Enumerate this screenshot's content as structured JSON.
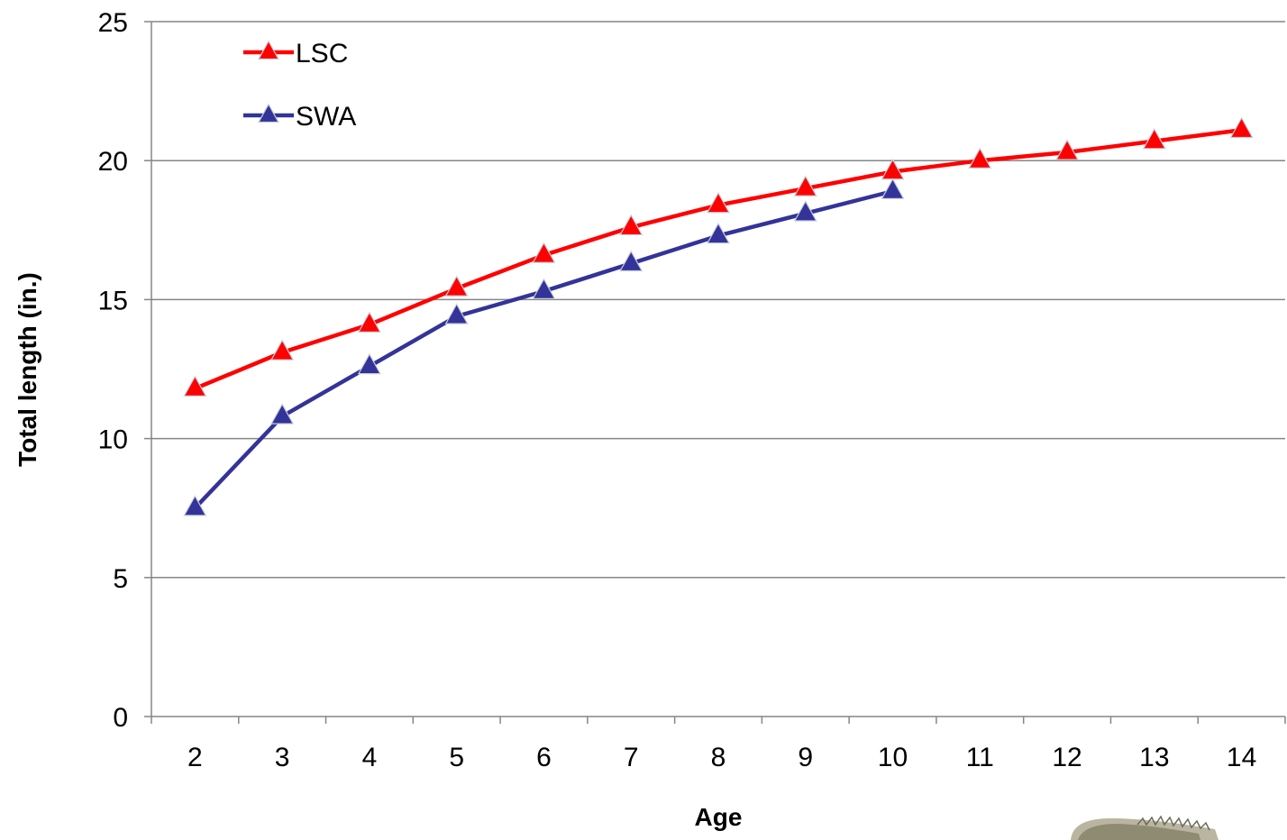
{
  "chart_data": {
    "type": "line",
    "title": "",
    "xlabel": "Age",
    "ylabel": "Total length (in.)",
    "categories": [
      "2",
      "3",
      "4",
      "5",
      "6",
      "7",
      "8",
      "9",
      "10",
      "11",
      "12",
      "13",
      "14"
    ],
    "ylim": [
      0,
      25
    ],
    "yticks": [
      "0",
      "5",
      "10",
      "15",
      "20",
      "25"
    ],
    "grid": true,
    "legend_position": "top-left",
    "series": [
      {
        "name": "LSC",
        "color": "#ff0000",
        "marker": "triangle",
        "values": [
          11.8,
          13.1,
          14.1,
          15.4,
          16.6,
          17.6,
          18.4,
          19.0,
          19.6,
          20.0,
          20.3,
          20.7,
          21.1
        ]
      },
      {
        "name": "SWA",
        "color": "#333399",
        "marker": "triangle",
        "values": [
          7.5,
          10.8,
          12.6,
          14.4,
          15.3,
          16.3,
          17.3,
          18.1,
          18.9,
          null,
          null,
          null,
          null
        ]
      }
    ]
  },
  "decoration": {
    "icon": "fish-fin-icon"
  }
}
